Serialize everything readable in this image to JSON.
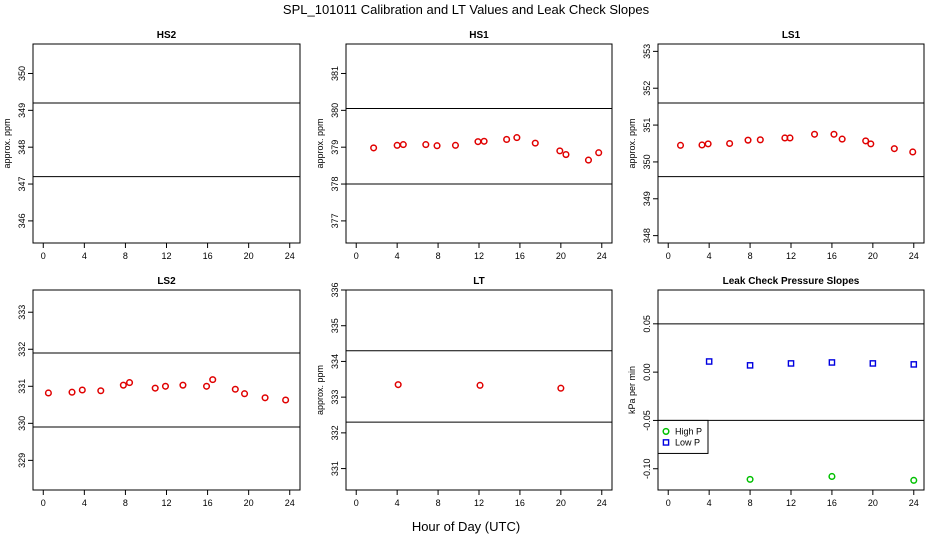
{
  "figure": {
    "title": "SPL_101011  Calibration and LT Values and Leak Check Slopes",
    "xlabel": "Hour of Day (UTC)"
  },
  "chart_data": [
    {
      "type": "scatter",
      "title": "HS2",
      "ylabel": "approx. ppm",
      "xlim": [
        -1,
        25
      ],
      "ylim": [
        345.4,
        350.8
      ],
      "xticks": [
        0,
        4,
        8,
        12,
        16,
        20,
        24
      ],
      "yticks": [
        346,
        347,
        348,
        349,
        350
      ],
      "hlines": [
        349.2,
        347.2
      ],
      "series": [
        {
          "color": "#e00000",
          "marker": "circle",
          "points": []
        }
      ]
    },
    {
      "type": "scatter",
      "title": "HS1",
      "ylabel": "approx. ppm",
      "xlim": [
        -1,
        25
      ],
      "ylim": [
        376.4,
        381.8
      ],
      "xticks": [
        0,
        4,
        8,
        12,
        16,
        20,
        24
      ],
      "yticks": [
        377,
        378,
        379,
        380,
        381
      ],
      "hlines": [
        380.05,
        378.0
      ],
      "series": [
        {
          "color": "#e00000",
          "marker": "circle",
          "points": [
            [
              1.7,
              378.98
            ],
            [
              4.0,
              379.05
            ],
            [
              4.6,
              379.07
            ],
            [
              6.8,
              379.07
            ],
            [
              7.9,
              379.04
            ],
            [
              9.7,
              379.05
            ],
            [
              11.9,
              379.15
            ],
            [
              12.5,
              379.16
            ],
            [
              14.7,
              379.21
            ],
            [
              15.7,
              379.26
            ],
            [
              17.5,
              379.11
            ],
            [
              19.9,
              378.9
            ],
            [
              20.5,
              378.8
            ],
            [
              22.7,
              378.65
            ],
            [
              23.7,
              378.85
            ]
          ]
        }
      ]
    },
    {
      "type": "scatter",
      "title": "LS1",
      "ylabel": "approx. ppm",
      "xlim": [
        -1,
        25
      ],
      "ylim": [
        347.8,
        353.2
      ],
      "xticks": [
        0,
        4,
        8,
        12,
        16,
        20,
        24
      ],
      "yticks": [
        348,
        349,
        350,
        351,
        352,
        353
      ],
      "hlines": [
        351.6,
        349.6
      ],
      "series": [
        {
          "color": "#e00000",
          "marker": "circle",
          "points": [
            [
              1.2,
              350.45
            ],
            [
              3.3,
              350.46
            ],
            [
              3.9,
              350.49
            ],
            [
              6.0,
              350.5
            ],
            [
              7.8,
              350.59
            ],
            [
              9.0,
              350.6
            ],
            [
              11.4,
              350.65
            ],
            [
              11.9,
              350.65
            ],
            [
              14.3,
              350.75
            ],
            [
              16.2,
              350.75
            ],
            [
              17.0,
              350.62
            ],
            [
              19.3,
              350.57
            ],
            [
              19.8,
              350.49
            ],
            [
              22.1,
              350.36
            ],
            [
              23.9,
              350.27
            ]
          ]
        }
      ]
    },
    {
      "type": "scatter",
      "title": "LS2",
      "ylabel": "",
      "xlim": [
        -1,
        25
      ],
      "ylim": [
        328.2,
        333.6
      ],
      "xticks": [
        0,
        4,
        8,
        12,
        16,
        20,
        24
      ],
      "yticks": [
        329,
        330,
        331,
        332,
        333
      ],
      "hlines": [
        331.9,
        329.9
      ],
      "series": [
        {
          "color": "#e00000",
          "marker": "circle",
          "points": [
            [
              0.5,
              330.82
            ],
            [
              2.8,
              330.84
            ],
            [
              3.8,
              330.9
            ],
            [
              5.6,
              330.88
            ],
            [
              7.8,
              331.03
            ],
            [
              8.4,
              331.1
            ],
            [
              10.9,
              330.95
            ],
            [
              11.9,
              331.0
            ],
            [
              13.6,
              331.03
            ],
            [
              15.9,
              331.0
            ],
            [
              16.5,
              331.18
            ],
            [
              18.7,
              330.92
            ],
            [
              19.6,
              330.8
            ],
            [
              21.6,
              330.69
            ],
            [
              23.6,
              330.63
            ]
          ]
        }
      ]
    },
    {
      "type": "scatter",
      "title": "LT",
      "ylabel": "approx. ppm",
      "xlim": [
        -1,
        25
      ],
      "ylim": [
        330.4,
        336.0
      ],
      "xticks": [
        0,
        4,
        8,
        12,
        16,
        20,
        24
      ],
      "yticks": [
        331,
        332,
        333,
        334,
        335,
        336
      ],
      "hlines": [
        334.3,
        332.3
      ],
      "series": [
        {
          "color": "#e00000",
          "marker": "circle",
          "points": [
            [
              4.1,
              333.35
            ],
            [
              12.1,
              333.33
            ],
            [
              20.0,
              333.25
            ]
          ]
        }
      ]
    },
    {
      "type": "scatter",
      "title": "Leak Check Pressure Slopes",
      "ylabel": "kPa per min",
      "xlim": [
        -1,
        25
      ],
      "ylim": [
        -0.122,
        0.085
      ],
      "xticks": [
        0,
        4,
        8,
        12,
        16,
        20,
        24
      ],
      "yticks": [
        -0.1,
        -0.05,
        0.0,
        0.05
      ],
      "yticklabels": [
        "-0.10",
        "-0.05",
        "0.00",
        "0.05"
      ],
      "hlines": [
        0.05,
        -0.05
      ],
      "legend": {
        "position": "bottom-left",
        "entries": [
          {
            "label": "High P",
            "color": "#00c000",
            "marker": "circle"
          },
          {
            "label": "Low P",
            "color": "#0000e0",
            "marker": "square"
          }
        ]
      },
      "series": [
        {
          "name": "High P",
          "color": "#00c000",
          "marker": "circle",
          "points": [
            [
              8.0,
              -0.111
            ],
            [
              16.0,
              -0.108
            ],
            [
              24.0,
              -0.112
            ]
          ]
        },
        {
          "name": "Low P",
          "color": "#0000e0",
          "marker": "square",
          "points": [
            [
              4.0,
              0.011
            ],
            [
              8.0,
              0.007
            ],
            [
              12.0,
              0.009
            ],
            [
              16.0,
              0.01
            ],
            [
              20.0,
              0.009
            ],
            [
              24.0,
              0.008
            ]
          ]
        }
      ]
    }
  ]
}
